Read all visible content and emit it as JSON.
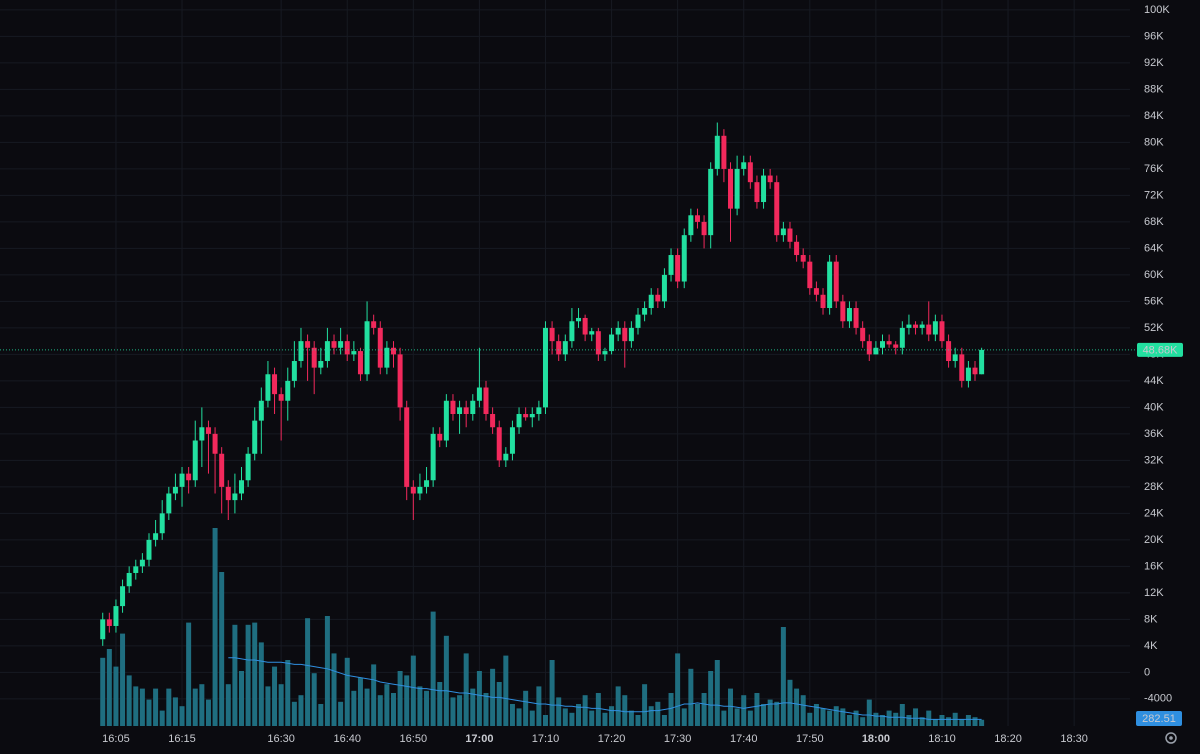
{
  "chart_data": {
    "type": "candlestick",
    "x": [
      "16:03",
      "16:04",
      "16:05",
      "16:06",
      "16:07",
      "16:08",
      "16:09",
      "16:10",
      "16:11",
      "16:12",
      "16:13",
      "16:14",
      "16:15",
      "16:16",
      "16:17",
      "16:18",
      "16:19",
      "16:20",
      "16:21",
      "16:22",
      "16:23",
      "16:24",
      "16:25",
      "16:26",
      "16:27",
      "16:28",
      "16:29",
      "16:30",
      "16:31",
      "16:32",
      "16:33",
      "16:34",
      "16:35",
      "16:36",
      "16:37",
      "16:38",
      "16:39",
      "16:40",
      "16:41",
      "16:42",
      "16:43",
      "16:44",
      "16:45",
      "16:46",
      "16:47",
      "16:48",
      "16:49",
      "16:50",
      "16:51",
      "16:52",
      "16:53",
      "16:54",
      "16:55",
      "16:56",
      "16:57",
      "16:58",
      "16:59",
      "17:00",
      "17:01",
      "17:02",
      "17:03",
      "17:04",
      "17:05",
      "17:06",
      "17:07",
      "17:08",
      "17:09",
      "17:10",
      "17:11",
      "17:12",
      "17:13",
      "17:14",
      "17:15",
      "17:16",
      "17:17",
      "17:18",
      "17:19",
      "17:20",
      "17:21",
      "17:22",
      "17:23",
      "17:24",
      "17:25",
      "17:26",
      "17:27",
      "17:28",
      "17:29",
      "17:30",
      "17:31",
      "17:32",
      "17:33",
      "17:34",
      "17:35",
      "17:36",
      "17:37",
      "17:38",
      "17:39",
      "17:40",
      "17:41",
      "17:42",
      "17:43",
      "17:44",
      "17:45",
      "17:46",
      "17:47",
      "17:48",
      "17:49",
      "17:50",
      "17:51",
      "17:52",
      "17:53",
      "17:54",
      "17:55",
      "17:56",
      "17:57",
      "17:58",
      "17:59",
      "18:00",
      "18:01",
      "18:02",
      "18:03",
      "18:04",
      "18:05",
      "18:06",
      "18:07",
      "18:08",
      "18:09",
      "18:10",
      "18:11",
      "18:12",
      "18:13",
      "18:14",
      "18:15",
      "18:16"
    ],
    "open": [
      5000,
      8000,
      7000,
      10000,
      13000,
      15000,
      16000,
      17000,
      20000,
      21000,
      24000,
      27000,
      28000,
      30000,
      29000,
      35000,
      37000,
      36000,
      33000,
      28000,
      26000,
      27000,
      29000,
      33000,
      38000,
      41000,
      45000,
      42000,
      41000,
      44000,
      47000,
      50000,
      49000,
      46000,
      47000,
      50000,
      49000,
      50000,
      48000,
      48500,
      45000,
      53000,
      52000,
      46000,
      49000,
      48000,
      40000,
      28000,
      27000,
      28000,
      29000,
      36000,
      35000,
      41000,
      39000,
      40000,
      39000,
      41000,
      43000,
      39000,
      37000,
      32000,
      33000,
      37000,
      39000,
      38500,
      39000,
      40000,
      52000,
      50000,
      48000,
      50000,
      53000,
      53500,
      51000,
      51500,
      48000,
      48500,
      51000,
      52000,
      50000,
      52000,
      54000,
      55000,
      57000,
      56000,
      60000,
      63000,
      59000,
      66000,
      69000,
      68000,
      66000,
      76000,
      81000,
      76000,
      70000,
      76000,
      77000,
      74000,
      71000,
      75000,
      74000,
      66000,
      67000,
      65000,
      63000,
      62000,
      58000,
      57000,
      55000,
      62000,
      56000,
      53000,
      55000,
      52000,
      50000,
      48000,
      49000,
      50000,
      49500,
      49000,
      52000,
      52500,
      52000,
      52500,
      51000,
      53000,
      50000,
      47000,
      48000,
      44000,
      46000,
      45000
    ],
    "high": [
      9000,
      9000,
      11000,
      14000,
      16000,
      17000,
      18000,
      21000,
      23000,
      26000,
      28000,
      30000,
      31000,
      31000,
      38000,
      40000,
      38000,
      37000,
      34000,
      29000,
      30000,
      31000,
      34000,
      40000,
      43000,
      47000,
      46000,
      43000,
      46000,
      50000,
      52000,
      51000,
      50000,
      49000,
      52000,
      51000,
      52000,
      51000,
      50000,
      49000,
      56000,
      54000,
      53000,
      50000,
      50000,
      49000,
      41000,
      29000,
      30000,
      31000,
      37000,
      37000,
      42000,
      42000,
      41000,
      41000,
      42000,
      49000,
      44000,
      40000,
      38000,
      34000,
      38000,
      40000,
      40000,
      40000,
      41000,
      53000,
      53000,
      51000,
      51000,
      55000,
      55000,
      54000,
      52000,
      52000,
      49000,
      52000,
      53000,
      53000,
      53000,
      55000,
      56000,
      58000,
      58000,
      61000,
      64000,
      64000,
      67000,
      70000,
      70000,
      69000,
      77000,
      83000,
      82000,
      77000,
      78000,
      78000,
      78000,
      75000,
      76000,
      76000,
      75000,
      68000,
      68000,
      66000,
      64000,
      63000,
      59000,
      58000,
      63000,
      63000,
      57000,
      56000,
      56000,
      53000,
      51000,
      50000,
      51000,
      51000,
      50000,
      53000,
      54000,
      53000,
      53000,
      56000,
      54000,
      54000,
      51000,
      49000,
      49000,
      47000,
      47000,
      49000
    ],
    "low": [
      4000,
      6000,
      6000,
      9000,
      12000,
      14000,
      15000,
      16000,
      19000,
      20000,
      23000,
      26000,
      25000,
      27000,
      28000,
      31000,
      30000,
      27000,
      24000,
      23000,
      24000,
      26000,
      28000,
      32000,
      33000,
      40000,
      39000,
      35000,
      38000,
      43000,
      46000,
      44000,
      42000,
      45000,
      46000,
      48000,
      48000,
      47000,
      47000,
      44000,
      44000,
      51000,
      45000,
      45000,
      46000,
      38000,
      26000,
      23000,
      26000,
      27000,
      28000,
      34000,
      34000,
      38000,
      36000,
      37000,
      38000,
      40000,
      38000,
      36000,
      31000,
      31000,
      32000,
      36000,
      38000,
      37000,
      38000,
      39000,
      48000,
      47000,
      47000,
      49000,
      52000,
      50000,
      50000,
      47000,
      47000,
      48000,
      50000,
      46000,
      49000,
      51000,
      53000,
      54000,
      55000,
      55000,
      59000,
      58000,
      58000,
      65000,
      67000,
      64000,
      64000,
      75000,
      74000,
      65000,
      69000,
      75000,
      73000,
      70000,
      70000,
      73000,
      65000,
      65000,
      64000,
      62000,
      61000,
      57000,
      56000,
      54000,
      54000,
      55000,
      52000,
      52000,
      51000,
      49000,
      47000,
      48000,
      48000,
      49000,
      48000,
      48000,
      51000,
      51000,
      51000,
      50000,
      50000,
      49000,
      46000,
      46000,
      43000,
      43000,
      44000,
      45000
    ],
    "close": [
      8000,
      7000,
      10000,
      13000,
      15000,
      16000,
      17000,
      20000,
      21000,
      24000,
      27000,
      28000,
      30000,
      29000,
      35000,
      37000,
      36000,
      33000,
      28000,
      26000,
      27000,
      29000,
      33000,
      38000,
      41000,
      45000,
      42000,
      41000,
      44000,
      47000,
      50000,
      49000,
      46000,
      47000,
      50000,
      49000,
      50000,
      48000,
      48500,
      45000,
      53000,
      52000,
      46000,
      49000,
      48000,
      40000,
      28000,
      27000,
      28000,
      29000,
      36000,
      35000,
      41000,
      39000,
      40000,
      39000,
      41000,
      43000,
      39000,
      37000,
      32000,
      33000,
      37000,
      39000,
      38500,
      39000,
      40000,
      52000,
      50000,
      48000,
      50000,
      53000,
      53500,
      51000,
      51500,
      48000,
      48500,
      51000,
      52000,
      50000,
      52000,
      54000,
      55000,
      57000,
      56000,
      60000,
      63000,
      59000,
      66000,
      69000,
      68000,
      66000,
      76000,
      81000,
      76000,
      70000,
      76000,
      77000,
      74000,
      71000,
      75000,
      74000,
      66000,
      67000,
      65000,
      63000,
      62000,
      58000,
      57000,
      55000,
      62000,
      56000,
      53000,
      55000,
      52000,
      50000,
      48000,
      49000,
      50000,
      49500,
      49000,
      52000,
      52500,
      52000,
      52500,
      51000,
      53000,
      50000,
      47000,
      48000,
      44000,
      46000,
      45000,
      48680
    ],
    "volume": [
      3100,
      3500,
      2700,
      4200,
      2300,
      1800,
      1700,
      1200,
      1700,
      700,
      1700,
      1300,
      900,
      4700,
      1700,
      1900,
      1200,
      9000,
      7000,
      1900,
      4600,
      2500,
      4600,
      4700,
      3800,
      1800,
      2700,
      1900,
      3000,
      1100,
      1400,
      4900,
      2400,
      1000,
      5000,
      3300,
      1100,
      3100,
      1600,
      2200,
      1700,
      2800,
      1400,
      1900,
      1500,
      2500,
      2300,
      3200,
      1800,
      1600,
      5200,
      2000,
      4100,
      1300,
      1400,
      3300,
      1700,
      2500,
      1500,
      2600,
      2000,
      3200,
      1000,
      800,
      1600,
      700,
      1800,
      500,
      3000,
      1300,
      800,
      600,
      1000,
      1400,
      700,
      1500,
      600,
      900,
      1800,
      1400,
      700,
      500,
      1900,
      900,
      1100,
      500,
      1500,
      3300,
      800,
      2600,
      1000,
      1500,
      2500,
      3000,
      700,
      1700,
      800,
      1400,
      700,
      1500,
      1000,
      1200,
      1100,
      4500,
      2100,
      1700,
      1400,
      600,
      1000,
      800,
      700,
      900,
      800,
      500,
      700,
      400,
      1200,
      600,
      500,
      700,
      600,
      1000,
      500,
      800,
      400,
      700,
      300,
      500,
      400,
      600,
      300,
      500,
      400,
      282.51
    ],
    "volume_ma": [
      null,
      null,
      null,
      null,
      null,
      null,
      null,
      null,
      null,
      null,
      null,
      null,
      null,
      null,
      null,
      null,
      null,
      null,
      null,
      3100,
      3100,
      3050,
      3000,
      3000,
      2950,
      2900,
      2900,
      2900,
      2850,
      2800,
      2800,
      2750,
      2700,
      2650,
      2600,
      2500,
      2400,
      2300,
      2250,
      2200,
      2150,
      2100,
      2000,
      1950,
      1900,
      1850,
      1800,
      1750,
      1700,
      1700,
      1650,
      1600,
      1600,
      1550,
      1500,
      1500,
      1450,
      1400,
      1350,
      1300,
      1300,
      1250,
      1200,
      1150,
      1100,
      1050,
      1000,
      1000,
      950,
      950,
      900,
      900,
      850,
      850,
      800,
      800,
      750,
      700,
      700,
      650,
      650,
      650,
      650,
      700,
      700,
      750,
      800,
      900,
      1000,
      1000,
      1050,
      1000,
      950,
      950,
      900,
      900,
      850,
      800,
      850,
      900,
      950,
      1000,
      1000,
      1050,
      1050,
      1000,
      950,
      900,
      850,
      800,
      750,
      700,
      650,
      600,
      550,
      500,
      500,
      450,
      450,
      400,
      400,
      400,
      350,
      350,
      350,
      300,
      300,
      300,
      300,
      300,
      300,
      300,
      300,
      300
    ],
    "up_color": "#22e0a0",
    "down_color": "#f2295c",
    "volume_color": "#1f6e80",
    "volume_ma_color": "#2f8fe0",
    "xlim": [
      "15:47",
      "18:38"
    ],
    "xticks": [
      "16:05",
      "16:15",
      "16:30",
      "16:40",
      "16:50",
      "17:00",
      "17:10",
      "17:20",
      "17:30",
      "17:40",
      "17:50",
      "18:00",
      "18:10",
      "18:20",
      "18:30"
    ],
    "bold_hour_ticks": true,
    "ylim": [
      -8100,
      101500
    ],
    "yticks": [
      {
        "value": 100000,
        "label": "100K"
      },
      {
        "value": 96000,
        "label": "96K"
      },
      {
        "value": 92000,
        "label": "92K"
      },
      {
        "value": 88000,
        "label": "88K"
      },
      {
        "value": 84000,
        "label": "84K"
      },
      {
        "value": 80000,
        "label": "80K"
      },
      {
        "value": 76000,
        "label": "76K"
      },
      {
        "value": 72000,
        "label": "72K"
      },
      {
        "value": 68000,
        "label": "68K"
      },
      {
        "value": 64000,
        "label": "64K"
      },
      {
        "value": 60000,
        "label": "60K"
      },
      {
        "value": 56000,
        "label": "56K"
      },
      {
        "value": 52000,
        "label": "52K"
      },
      {
        "value": 48000,
        "label": "48K"
      },
      {
        "value": 44000,
        "label": "44K"
      },
      {
        "value": 40000,
        "label": "40K"
      },
      {
        "value": 36000,
        "label": "36K"
      },
      {
        "value": 32000,
        "label": "32K"
      },
      {
        "value": 28000,
        "label": "28K"
      },
      {
        "value": 24000,
        "label": "24K"
      },
      {
        "value": 20000,
        "label": "20K"
      },
      {
        "value": 16000,
        "label": "16K"
      },
      {
        "value": 12000,
        "label": "12K"
      },
      {
        "value": 8000,
        "label": "8K"
      },
      {
        "value": 4000,
        "label": "4K"
      },
      0,
      -4000
    ],
    "volume_lim": [
      0,
      10000
    ],
    "price_line": {
      "value": 48680,
      "label": "48.68K"
    },
    "grid": true
  }
}
